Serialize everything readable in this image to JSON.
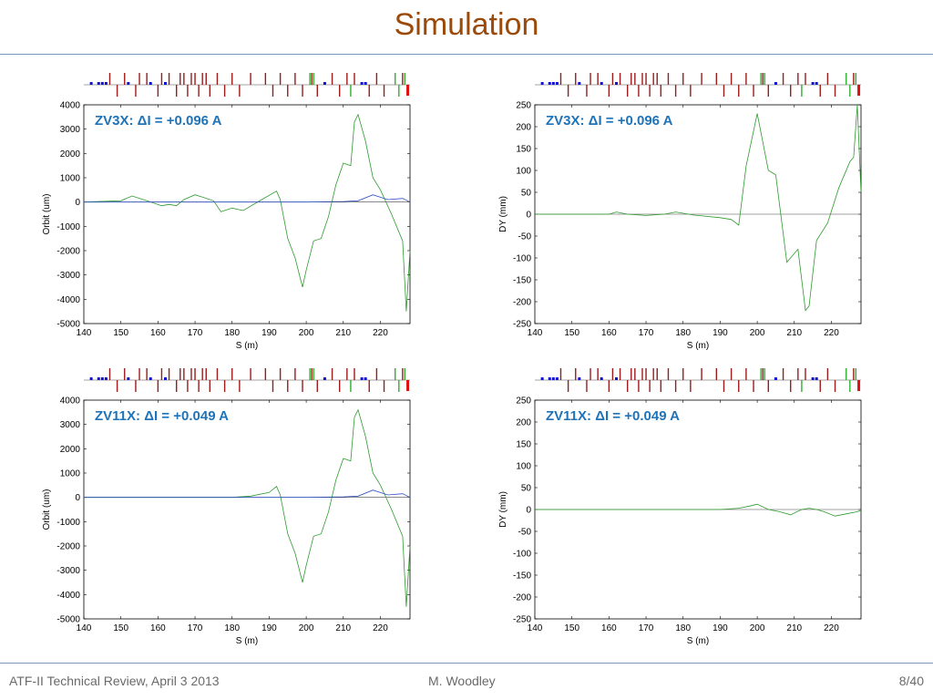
{
  "slide": {
    "title": "Simulation",
    "footer_left": "ATF-II Technical Review, April 3 2013",
    "footer_center": "M. Woodley",
    "footer_right": "8/40"
  },
  "colors": {
    "title": "#9a4a0a",
    "annotation": "#1f73b8",
    "green_trace": "#2e9a2e",
    "blue_trace": "#3050c0",
    "magnet_red": "#9b1c1c",
    "magnet_blue": "#1010d0",
    "magnet_green": "#30b030",
    "magnet_bright_red": "#e01010"
  },
  "chart_data": [
    {
      "id": "orbit-zv3x",
      "type": "line",
      "annotation": "ZV3X: ΔI = +0.096 A",
      "xlabel": "S (m)",
      "ylabel": "Orbit (um)",
      "xlim": [
        140,
        228
      ],
      "ylim": [
        -5000,
        4000
      ],
      "xticks": [
        140,
        150,
        160,
        170,
        180,
        190,
        200,
        210,
        220
      ],
      "yticks": [
        4000,
        3000,
        2000,
        1000,
        0,
        -1000,
        -2000,
        -3000,
        -4000,
        -5000
      ],
      "grid": false,
      "series": [
        {
          "color": "green",
          "x": [
            140,
            150,
            153,
            157,
            161,
            163,
            165,
            167,
            170,
            172,
            175,
            177,
            180,
            183,
            188,
            192,
            193,
            195,
            197,
            199,
            200,
            202,
            204,
            206,
            208,
            210,
            212,
            213,
            214,
            216,
            218,
            220,
            223,
            226,
            227,
            228
          ],
          "y": [
            0,
            50,
            250,
            50,
            -150,
            -100,
            -150,
            100,
            300,
            200,
            50,
            -400,
            -250,
            -350,
            100,
            450,
            100,
            -1500,
            -2300,
            -3500,
            -2800,
            -1600,
            -1500,
            -600,
            700,
            1600,
            1500,
            3300,
            3600,
            2500,
            1000,
            500,
            -500,
            -1600,
            -4500,
            -2000
          ]
        },
        {
          "color": "blue",
          "x": [
            140,
            160,
            180,
            200,
            210,
            214,
            218,
            222,
            226,
            228
          ],
          "y": [
            0,
            0,
            0,
            0,
            20,
            50,
            300,
            100,
            150,
            0
          ]
        }
      ]
    },
    {
      "id": "dy-zv3x",
      "type": "line",
      "annotation": "ZV3X: ΔI = +0.096 A",
      "xlabel": "S (m)",
      "ylabel": "DY (mm)",
      "xlim": [
        140,
        228
      ],
      "ylim": [
        -250,
        250
      ],
      "xticks": [
        140,
        150,
        160,
        170,
        180,
        190,
        200,
        210,
        220
      ],
      "yticks": [
        250,
        200,
        150,
        100,
        50,
        0,
        -50,
        -100,
        -150,
        -200,
        -250
      ],
      "grid": false,
      "series": [
        {
          "color": "green",
          "x": [
            140,
            160,
            162,
            165,
            170,
            175,
            178,
            183,
            190,
            193,
            195,
            197,
            200,
            203,
            205,
            208,
            211,
            213,
            214,
            216,
            219,
            222,
            225,
            226,
            227,
            228
          ],
          "y": [
            0,
            0,
            5,
            0,
            -3,
            0,
            5,
            -2,
            -8,
            -12,
            -25,
            110,
            230,
            100,
            90,
            -110,
            -80,
            -220,
            -210,
            -60,
            -20,
            60,
            120,
            130,
            250,
            50
          ]
        }
      ]
    },
    {
      "id": "orbit-zv11x",
      "type": "line",
      "annotation": "ZV11X: ΔI = +0.049 A",
      "xlabel": "S (m)",
      "ylabel": "Orbit (um)",
      "xlim": [
        140,
        228
      ],
      "ylim": [
        -5000,
        4000
      ],
      "xticks": [
        140,
        150,
        160,
        170,
        180,
        190,
        200,
        210,
        220
      ],
      "yticks": [
        4000,
        3000,
        2000,
        1000,
        0,
        -1000,
        -2000,
        -3000,
        -4000,
        -5000
      ],
      "grid": false,
      "series": [
        {
          "color": "green",
          "x": [
            140,
            180,
            185,
            190,
            192,
            193,
            195,
            197,
            199,
            200,
            202,
            204,
            206,
            208,
            210,
            212,
            213,
            214,
            216,
            218,
            220,
            223,
            226,
            227,
            228
          ],
          "y": [
            0,
            0,
            50,
            200,
            450,
            100,
            -1500,
            -2300,
            -3500,
            -2800,
            -1600,
            -1500,
            -600,
            700,
            1600,
            1500,
            3300,
            3600,
            2500,
            1000,
            500,
            -500,
            -1600,
            -4500,
            -2000
          ]
        },
        {
          "color": "blue",
          "x": [
            140,
            160,
            180,
            200,
            210,
            214,
            218,
            222,
            226,
            228
          ],
          "y": [
            0,
            0,
            0,
            0,
            20,
            50,
            300,
            100,
            150,
            0
          ]
        }
      ]
    },
    {
      "id": "dy-zv11x",
      "type": "line",
      "annotation": "ZV11X: ΔI = +0.049 A",
      "xlabel": "S (m)",
      "ylabel": "DY (mm)",
      "xlim": [
        140,
        228
      ],
      "ylim": [
        -250,
        250
      ],
      "xticks": [
        140,
        150,
        160,
        170,
        180,
        190,
        200,
        210,
        220
      ],
      "yticks": [
        250,
        200,
        150,
        100,
        50,
        0,
        -50,
        -100,
        -150,
        -200,
        -250
      ],
      "grid": false,
      "series": [
        {
          "color": "green",
          "x": [
            140,
            190,
            195,
            198,
            200,
            203,
            206,
            209,
            212,
            214,
            216,
            218,
            221,
            224,
            227,
            228
          ],
          "y": [
            0,
            0,
            3,
            8,
            12,
            0,
            -5,
            -12,
            0,
            3,
            0,
            -5,
            -15,
            -10,
            -5,
            -2
          ]
        }
      ]
    }
  ]
}
